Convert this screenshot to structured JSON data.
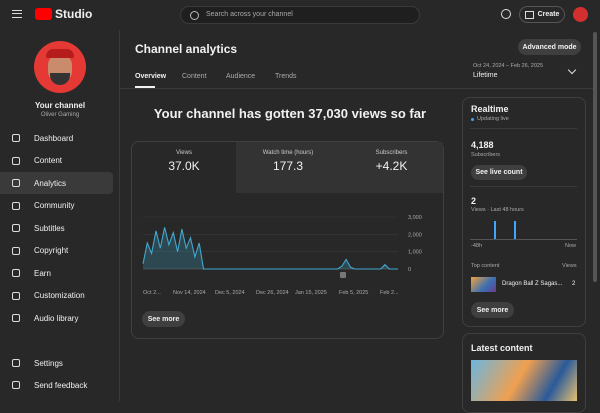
{
  "header": {
    "logo": "Studio",
    "search_placeholder": "Search across your channel",
    "create": "Create"
  },
  "channel": {
    "label": "Your channel",
    "name": "Oliver Gaming"
  },
  "nav": [
    "Dashboard",
    "Content",
    "Analytics",
    "Community",
    "Subtitles",
    "Copyright",
    "Earn",
    "Customization",
    "Audio library"
  ],
  "nav_bottom": [
    "Settings",
    "Send feedback"
  ],
  "analytics": {
    "title": "Channel analytics",
    "tabs": [
      "Overview",
      "Content",
      "Audience",
      "Trends"
    ],
    "advanced": "Advanced mode",
    "date_range": "Oct 24, 2024 – Feb 26, 2025",
    "period": "Lifetime",
    "headline": "Your channel has gotten 37,030 views so far",
    "metrics": [
      {
        "label": "Views",
        "value": "37.0K"
      },
      {
        "label": "Watch time (hours)",
        "value": "177.3"
      },
      {
        "label": "Subscribers",
        "value": "+4.2K"
      }
    ],
    "see_more": "See more"
  },
  "chart": {
    "type": "line",
    "color": "#41a8d0",
    "values": [
      300,
      1500,
      900,
      2200,
      1200,
      2400,
      1400,
      2100,
      1000,
      2300,
      1200,
      1800,
      700,
      1500,
      0,
      0,
      0,
      0,
      0,
      0,
      0,
      0,
      0,
      0,
      0,
      0,
      0,
      0,
      0,
      0,
      0,
      0,
      0,
      0,
      0,
      0,
      0,
      0,
      0,
      0,
      0,
      0,
      0,
      0,
      0,
      0,
      150,
      550,
      100,
      0,
      0,
      0,
      0,
      0,
      0,
      0,
      250,
      0,
      0,
      0
    ],
    "ylim": [
      0,
      3000
    ],
    "yticks": [
      0,
      {
        "value": 1000,
        "label": "1,000"
      },
      {
        "value": 2000,
        "label": "2,000"
      },
      {
        "value": 3000,
        "label": "3,000"
      }
    ],
    "x_labels": [
      "Oct 2...",
      "Nov 14, 2024",
      "Dec 5, 2024",
      "Dec 26, 2024",
      "Jan 15, 2025",
      "Feb 5, 2025",
      "Feb 2..."
    ]
  },
  "realtime": {
    "title": "Realtime",
    "status": "Updating live",
    "subscribers": "4,188",
    "subscribers_label": "Subscribers",
    "live_button": "See live count",
    "views": "2",
    "views_label": "Views · Last 48 hours",
    "start": "-48h",
    "end": "Now",
    "top_content": "Top content",
    "views_col": "Views",
    "top_item": "Dragon Ball Z Sagas...",
    "top_item_views": "2",
    "see_more": "See more"
  },
  "latest": {
    "title": "Latest content"
  }
}
